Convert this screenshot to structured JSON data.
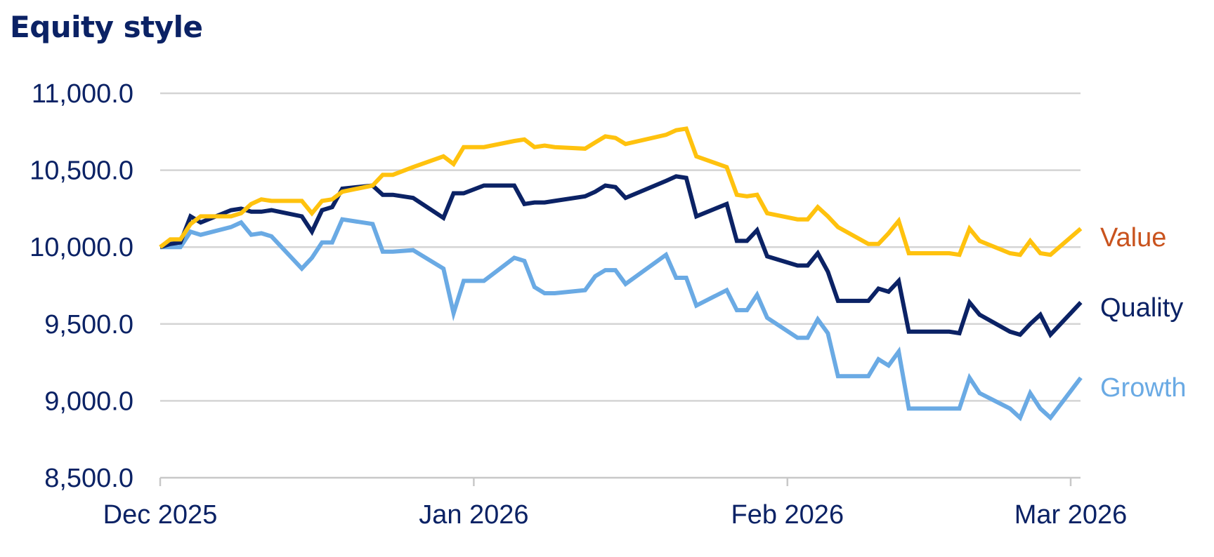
{
  "chart_data": {
    "type": "line",
    "title": "Equity style",
    "xlabel": "",
    "ylabel": "",
    "ylim": [
      8500,
      11000
    ],
    "yticks": [
      "11,000.0",
      "10,500.0",
      "10,000.0",
      "9,500.0",
      "9,000.0",
      "8,500.0"
    ],
    "ytick_values": [
      11000,
      10500,
      10000,
      9500,
      9000,
      8500
    ],
    "xticks": [
      "Dec 2025",
      "Jan 2026",
      "Feb 2026",
      "Mar 2026"
    ],
    "xtick_dates": [
      "2025-12-01",
      "2026-01-01",
      "2026-02-01",
      "2026-03-01"
    ],
    "grid": true,
    "legend": "inline-right",
    "x": [
      "2025-12-01",
      "2025-12-02",
      "2025-12-03",
      "2025-12-04",
      "2025-12-05",
      "2025-12-08",
      "2025-12-09",
      "2025-12-10",
      "2025-12-11",
      "2025-12-12",
      "2025-12-15",
      "2025-12-16",
      "2025-12-17",
      "2025-12-18",
      "2025-12-19",
      "2025-12-22",
      "2025-12-23",
      "2025-12-24",
      "2025-12-26",
      "2025-12-29",
      "2025-12-30",
      "2025-12-31",
      "2026-01-02",
      "2026-01-05",
      "2026-01-06",
      "2026-01-07",
      "2026-01-08",
      "2026-01-09",
      "2026-01-12",
      "2026-01-13",
      "2026-01-14",
      "2026-01-15",
      "2026-01-16",
      "2026-01-20",
      "2026-01-21",
      "2026-01-22",
      "2026-01-23",
      "2026-01-26",
      "2026-01-27",
      "2026-01-28",
      "2026-01-29",
      "2026-01-30",
      "2026-02-02",
      "2026-02-03",
      "2026-02-04",
      "2026-02-05",
      "2026-02-06",
      "2026-02-09",
      "2026-02-10",
      "2026-02-11",
      "2026-02-12",
      "2026-02-13",
      "2026-02-17",
      "2026-02-18",
      "2026-02-19",
      "2026-02-20",
      "2026-02-23",
      "2026-02-24",
      "2026-02-25",
      "2026-02-26",
      "2026-02-27",
      "2026-03-02"
    ],
    "series": [
      {
        "name": "Value",
        "color": "#ffc20e",
        "label_color": "#c9531e",
        "values": [
          10000,
          10050,
          10050,
          10150,
          10200,
          10200,
          10220,
          10280,
          10310,
          10300,
          10300,
          10220,
          10300,
          10310,
          10360,
          10400,
          10470,
          10470,
          10520,
          10590,
          10540,
          10650,
          10650,
          10690,
          10700,
          10650,
          10660,
          10650,
          10640,
          10680,
          10720,
          10710,
          10670,
          10730,
          10760,
          10770,
          10590,
          10520,
          10340,
          10330,
          10340,
          10220,
          10180,
          10180,
          10260,
          10200,
          10130,
          10020,
          10020,
          10090,
          10170,
          9960,
          9960,
          9950,
          10120,
          10040,
          9960,
          9950,
          10040,
          9960,
          9950,
          10120
        ]
      },
      {
        "name": "Quality",
        "color": "#0b2265",
        "label_color": "#0b2265",
        "values": [
          10000,
          10020,
          10030,
          10200,
          10160,
          10240,
          10250,
          10230,
          10230,
          10240,
          10200,
          10100,
          10240,
          10260,
          10380,
          10400,
          10340,
          10340,
          10320,
          10190,
          10350,
          10350,
          10400,
          10400,
          10280,
          10290,
          10290,
          10300,
          10330,
          10360,
          10400,
          10390,
          10320,
          10430,
          10460,
          10450,
          10200,
          10280,
          10040,
          10040,
          10110,
          9940,
          9880,
          9880,
          9960,
          9840,
          9650,
          9650,
          9730,
          9710,
          9780,
          9450,
          9450,
          9440,
          9640,
          9560,
          9450,
          9430,
          9500,
          9560,
          9430,
          9640
        ]
      },
      {
        "name": "Growth",
        "color": "#6aaae4",
        "label_color": "#6aaae4",
        "values": [
          10000,
          10000,
          10000,
          10100,
          10080,
          10130,
          10160,
          10080,
          10090,
          10070,
          9860,
          9930,
          10030,
          10030,
          10180,
          10150,
          9970,
          9970,
          9980,
          9860,
          9570,
          9780,
          9780,
          9930,
          9910,
          9740,
          9700,
          9700,
          9720,
          9810,
          9850,
          9850,
          9760,
          9950,
          9800,
          9800,
          9620,
          9720,
          9590,
          9590,
          9690,
          9540,
          9410,
          9410,
          9530,
          9440,
          9160,
          9160,
          9270,
          9230,
          9320,
          8950,
          8950,
          8950,
          9150,
          9050,
          8950,
          8890,
          9050,
          8950,
          8890,
          9150
        ]
      }
    ]
  }
}
